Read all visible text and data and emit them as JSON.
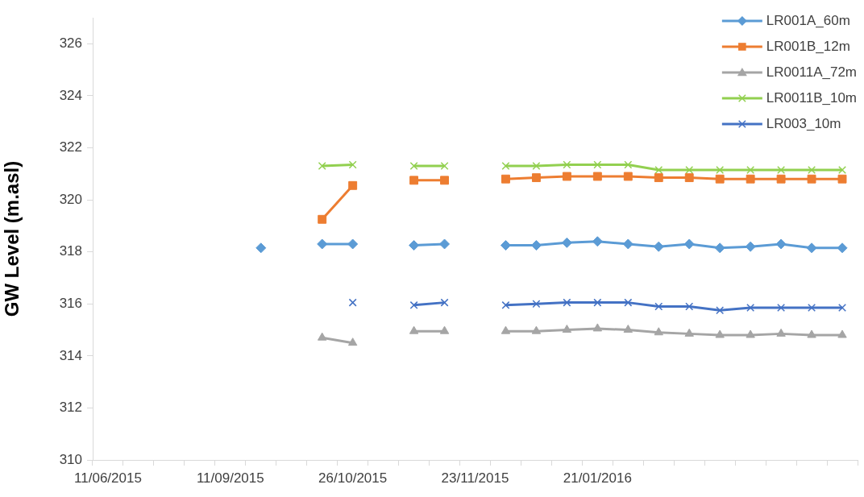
{
  "chart_data": {
    "type": "line",
    "ylabel": "GW Level (m.asl)",
    "categories": [
      "11/06/2015",
      null,
      null,
      null,
      "11/09/2015",
      null,
      null,
      null,
      "26/10/2015",
      null,
      null,
      null,
      "23/11/2015",
      null,
      null,
      null,
      "21/01/2016",
      null,
      null,
      null,
      null,
      null,
      null,
      null,
      null
    ],
    "ylim": [
      310,
      327
    ],
    "yticks": [
      310,
      312,
      314,
      316,
      318,
      320,
      322,
      324,
      326
    ],
    "grid": false,
    "legend": "top right",
    "line_style": "solid",
    "series": [
      {
        "name": "LR001A_60m",
        "color": "#5b9bd5",
        "marker": "diamond",
        "values": [
          null,
          null,
          null,
          null,
          null,
          318.15,
          null,
          318.3,
          318.3,
          null,
          318.25,
          318.3,
          null,
          318.25,
          318.25,
          318.35,
          318.4,
          318.3,
          318.2,
          318.3,
          318.15,
          318.2,
          318.3,
          318.15,
          318.15
        ]
      },
      {
        "name": "LR001B_12m",
        "color": "#ed7d31",
        "marker": "square",
        "values": [
          null,
          null,
          null,
          null,
          null,
          null,
          null,
          319.25,
          320.55,
          null,
          320.75,
          320.75,
          null,
          320.8,
          320.85,
          320.9,
          320.9,
          320.9,
          320.85,
          320.85,
          320.8,
          320.8,
          320.8,
          320.8,
          320.8
        ]
      },
      {
        "name": "LR0011A_72m",
        "color": "#a5a5a5",
        "marker": "triangle",
        "values": [
          null,
          null,
          null,
          null,
          null,
          null,
          null,
          314.7,
          314.5,
          null,
          314.95,
          314.95,
          null,
          314.95,
          314.95,
          315.0,
          315.05,
          315.0,
          314.9,
          314.85,
          314.8,
          314.8,
          314.85,
          314.8,
          314.8
        ]
      },
      {
        "name": "LR0011B_10m",
        "color": "#92d050",
        "marker": "cross",
        "values": [
          null,
          null,
          null,
          null,
          null,
          null,
          null,
          321.3,
          321.35,
          null,
          321.3,
          321.3,
          null,
          321.3,
          321.3,
          321.35,
          321.35,
          321.35,
          321.15,
          321.15,
          321.15,
          321.15,
          321.15,
          321.15,
          321.15
        ]
      },
      {
        "name": "LR003_10m",
        "color": "#4472c4",
        "marker": "cross",
        "values": [
          null,
          null,
          null,
          null,
          null,
          null,
          null,
          null,
          316.05,
          null,
          315.95,
          316.05,
          null,
          315.95,
          316.0,
          316.05,
          316.05,
          316.05,
          315.9,
          315.9,
          315.75,
          315.85,
          315.85,
          315.85,
          315.85
        ]
      }
    ]
  }
}
